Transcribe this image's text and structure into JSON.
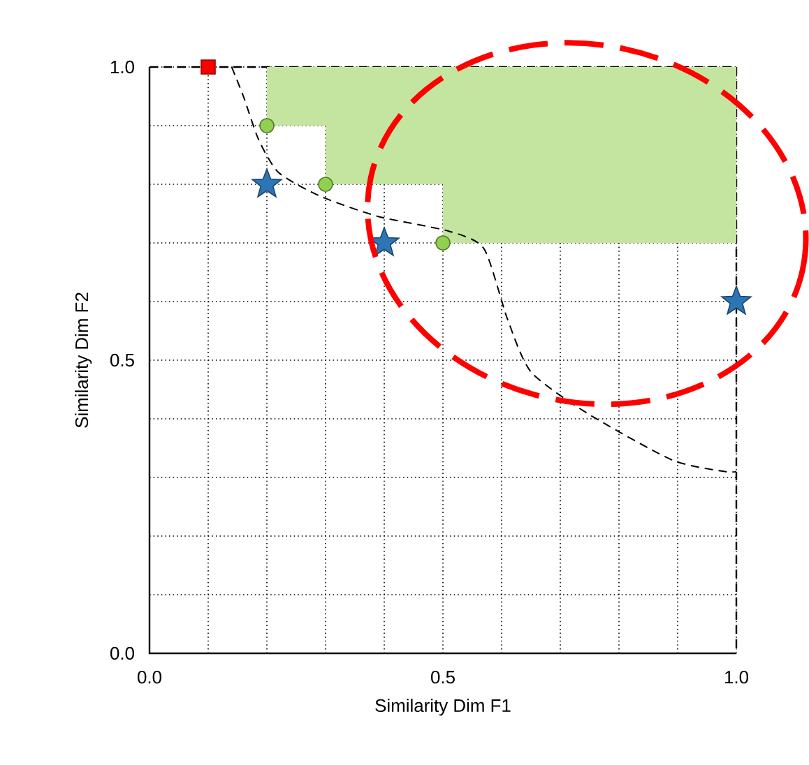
{
  "chart_data": {
    "type": "scatter",
    "xlabel": "Similarity Dim F1",
    "ylabel": "Similarity Dim F2",
    "xlim": [
      0,
      1
    ],
    "ylim": [
      0,
      1
    ],
    "xticks": [
      {
        "value": 0,
        "label": "0.0"
      },
      {
        "value": 0.1,
        "label": null
      },
      {
        "value": 0.2,
        "label": null
      },
      {
        "value": 0.3,
        "label": null
      },
      {
        "value": 0.4,
        "label": null
      },
      {
        "value": 0.5,
        "label": "0.5"
      },
      {
        "value": 0.6,
        "label": null
      },
      {
        "value": 0.7,
        "label": null
      },
      {
        "value": 0.8,
        "label": null
      },
      {
        "value": 0.9,
        "label": null
      },
      {
        "value": 1,
        "label": "1.0"
      }
    ],
    "yticks": [
      {
        "value": 0,
        "label": "0.0"
      },
      {
        "value": 0.1,
        "label": null
      },
      {
        "value": 0.2,
        "label": null
      },
      {
        "value": 0.3,
        "label": null
      },
      {
        "value": 0.4,
        "label": null
      },
      {
        "value": 0.5,
        "label": "0.5"
      },
      {
        "value": 0.6,
        "label": null
      },
      {
        "value": 0.7,
        "label": null
      },
      {
        "value": 0.8,
        "label": null
      },
      {
        "value": 0.9,
        "label": null
      },
      {
        "value": 1,
        "label": "1.0"
      }
    ],
    "grid": true,
    "series": [
      {
        "type": "area",
        "color": "#c3e59f",
        "x": [
          0.2,
          0.2,
          0.3,
          0.3,
          0.5,
          0.5,
          1.0,
          1.0
        ],
        "values": [
          1.0,
          0.9,
          0.9,
          0.8,
          0.8,
          0.7,
          0.7,
          1.0
        ]
      },
      {
        "type": "line",
        "color": "#000000",
        "line_style": "dashed",
        "marker": "none",
        "x": [
          0.14,
          0.16,
          0.186,
          0.22,
          0.29,
          0.39,
          0.51,
          0.57,
          0.61,
          0.65,
          0.745,
          0.89,
          0.98,
          1.0
        ],
        "values": [
          1.0,
          0.95,
          0.876,
          0.82,
          0.78,
          0.745,
          0.72,
          0.69,
          0.57,
          0.48,
          0.41,
          0.33,
          0.31,
          0.31
        ]
      },
      {
        "color": "#ff0000",
        "marker": "square",
        "x": [
          0.1
        ],
        "values": [
          1.0
        ]
      },
      {
        "color": "#92d050",
        "marker": "circle",
        "x": [
          0.2,
          0.3,
          0.5
        ],
        "values": [
          0.9,
          0.8,
          0.7
        ]
      },
      {
        "color": "#2e75b6",
        "marker": "star",
        "x": [
          0.2,
          0.4,
          1.0
        ],
        "values": [
          0.8,
          0.7,
          0.6
        ]
      }
    ]
  }
}
